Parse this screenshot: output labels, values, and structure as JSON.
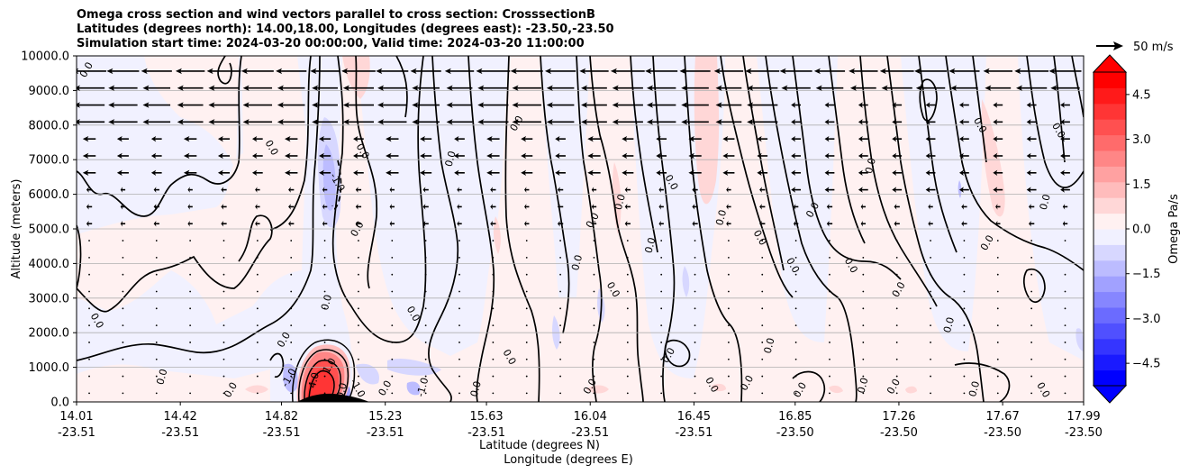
{
  "chart_data": {
    "type": "contourf-with-vectors",
    "title_lines": [
      "Omega cross section and wind vectors parallel to cross section: CrosssectionB",
      "Latitudes (degrees north): 14.00,18.00, Longitudes (degrees east): -23.50,-23.50",
      "Simulation start time: 2024-03-20 00:00:00, Valid time: 2024-03-20 11:00:00"
    ],
    "ylabel": "Altitude (meters)",
    "xlabel_lat": "Latitude (degrees N)",
    "xlabel_lon": "Longitude (degrees E)",
    "ylim": [
      0,
      10000
    ],
    "yticks": [
      "0.0",
      "1000.0",
      "2000.0",
      "3000.0",
      "4000.0",
      "5000.0",
      "6000.0",
      "7000.0",
      "8000.0",
      "9000.0",
      "10000.0"
    ],
    "xlim": [
      14.01,
      17.99
    ],
    "xticks": [
      {
        "lat": 14.01,
        "lat_label": "14.01",
        "lon_label": "-23.51"
      },
      {
        "lat": 14.42,
        "lat_label": "14.42",
        "lon_label": "-23.51"
      },
      {
        "lat": 14.82,
        "lat_label": "14.82",
        "lon_label": "-23.51"
      },
      {
        "lat": 15.23,
        "lat_label": "15.23",
        "lon_label": "-23.51"
      },
      {
        "lat": 15.63,
        "lat_label": "15.63",
        "lon_label": "-23.51"
      },
      {
        "lat": 16.04,
        "lat_label": "16.04",
        "lon_label": "-23.51"
      },
      {
        "lat": 16.45,
        "lat_label": "16.45",
        "lon_label": "-23.51"
      },
      {
        "lat": 16.85,
        "lat_label": "16.85",
        "lon_label": "-23.50"
      },
      {
        "lat": 17.26,
        "lat_label": "17.26",
        "lon_label": "-23.50"
      },
      {
        "lat": 17.67,
        "lat_label": "17.67",
        "lon_label": "-23.50"
      },
      {
        "lat": 17.99,
        "lat_label": "17.99",
        "lon_label": "-23.50"
      }
    ],
    "colorbar": {
      "label": "Omega Pa/s",
      "range": [
        -5.25,
        5.25
      ],
      "ticks": [
        "4.5",
        "3.0",
        "1.5",
        "0.0",
        "−1.5",
        "−3.0",
        "−4.5"
      ],
      "colors_low_to_high": [
        "#0000ff",
        "#1a1aff",
        "#3535ff",
        "#5050ff",
        "#6b6bff",
        "#8686ff",
        "#a1a1ff",
        "#bcbcff",
        "#d7d7ff",
        "#f1f1ff",
        "#fff1f1",
        "#ffd7d7",
        "#ffbcbc",
        "#ffa1a1",
        "#ff8686",
        "#ff6b6b",
        "#ff5050",
        "#ff3535",
        "#ff1a1a",
        "#ff0000"
      ]
    },
    "reference_vector": {
      "label": "50 m/s",
      "value": 50
    },
    "contour_labels": [
      {
        "text": "0.0",
        "lat": 14.06,
        "alt": 9550
      },
      {
        "text": "0.0",
        "lat": 16.17,
        "alt": 5750
      },
      {
        "text": "0.0",
        "lat": 14.77,
        "alt": 7300
      },
      {
        "text": "0.0",
        "lat": 14.63,
        "alt": 300
      },
      {
        "text": "0.0",
        "lat": 14.36,
        "alt": 700
      },
      {
        "text": "0.0",
        "lat": 14.08,
        "alt": 2300
      },
      {
        "text": "0.0",
        "lat": 14.84,
        "alt": 1750
      },
      {
        "text": "0.0",
        "lat": 15.01,
        "alt": 2850
      },
      {
        "text": "0.0",
        "lat": 15.13,
        "alt": 7200
      },
      {
        "text": "0.0",
        "lat": 15.13,
        "alt": 4950
      },
      {
        "text": "0.0",
        "lat": 15.5,
        "alt": 7000
      },
      {
        "text": "0.0",
        "lat": 15.33,
        "alt": 2500
      },
      {
        "text": "0.0",
        "lat": 15.76,
        "alt": 8000
      },
      {
        "text": "0.0",
        "lat": 15.6,
        "alt": 350
      },
      {
        "text": "0.0",
        "lat": 15.71,
        "alt": 1250
      },
      {
        "text": "0.0",
        "lat": 16.06,
        "alt": 5200
      },
      {
        "text": "0.0",
        "lat": 16.0,
        "alt": 4000
      },
      {
        "text": "0.0",
        "lat": 16.12,
        "alt": 3200
      },
      {
        "text": "0.0",
        "lat": 16.05,
        "alt": 400
      },
      {
        "text": "0.0",
        "lat": 16.29,
        "alt": 4500
      },
      {
        "text": "0.0",
        "lat": 16.35,
        "alt": 6300
      },
      {
        "text": "0.0",
        "lat": 16.36,
        "alt": 1300
      },
      {
        "text": "0.0",
        "lat": 16.57,
        "alt": 5300
      },
      {
        "text": "0.0",
        "lat": 16.7,
        "alt": 4700
      },
      {
        "text": "0.0",
        "lat": 16.67,
        "alt": 500
      },
      {
        "text": "0.0",
        "lat": 16.76,
        "alt": 1600
      },
      {
        "text": "0.0",
        "lat": 16.83,
        "alt": 3900
      },
      {
        "text": "0.0",
        "lat": 16.93,
        "alt": 5500
      },
      {
        "text": "0.0",
        "lat": 17.16,
        "alt": 6800
      },
      {
        "text": "0.0",
        "lat": 17.06,
        "alt": 3900
      },
      {
        "text": "0.0",
        "lat": 17.27,
        "alt": 3200
      },
      {
        "text": "0.0",
        "lat": 17.47,
        "alt": 2200
      },
      {
        "text": "0.0",
        "lat": 17.57,
        "alt": 7950
      },
      {
        "text": "0.0",
        "lat": 17.62,
        "alt": 4550
      },
      {
        "text": "0.0",
        "lat": 17.85,
        "alt": 5750
      },
      {
        "text": "0.0",
        "lat": 17.88,
        "alt": 7800
      },
      {
        "text": "0.0",
        "lat": 17.25,
        "alt": 400
      },
      {
        "text": "0.0",
        "lat": 17.57,
        "alt": 350
      },
      {
        "text": "0.0",
        "lat": 17.82,
        "alt": 300
      },
      {
        "text": "0.0",
        "lat": 16.88,
        "alt": 300
      },
      {
        "text": "0.0",
        "lat": 17.13,
        "alt": 450
      },
      {
        "text": "0.0",
        "lat": 16.51,
        "alt": 450
      },
      {
        "text": "0.0",
        "lat": 15.24,
        "alt": 350
      },
      {
        "text": "0.0",
        "lat": 15.07,
        "alt": 300
      },
      {
        "text": "-1.0",
        "lat": 15.03,
        "alt": 6300
      },
      {
        "text": "-1.0",
        "lat": 14.86,
        "alt": 650
      },
      {
        "text": "-1.0",
        "lat": 15.39,
        "alt": 400
      },
      {
        "text": "-1.0",
        "lat": 15.11,
        "alt": 350
      },
      {
        "text": "1.0",
        "lat": 15.02,
        "alt": 1000
      },
      {
        "text": "4.0",
        "lat": 14.96,
        "alt": 600
      }
    ]
  }
}
